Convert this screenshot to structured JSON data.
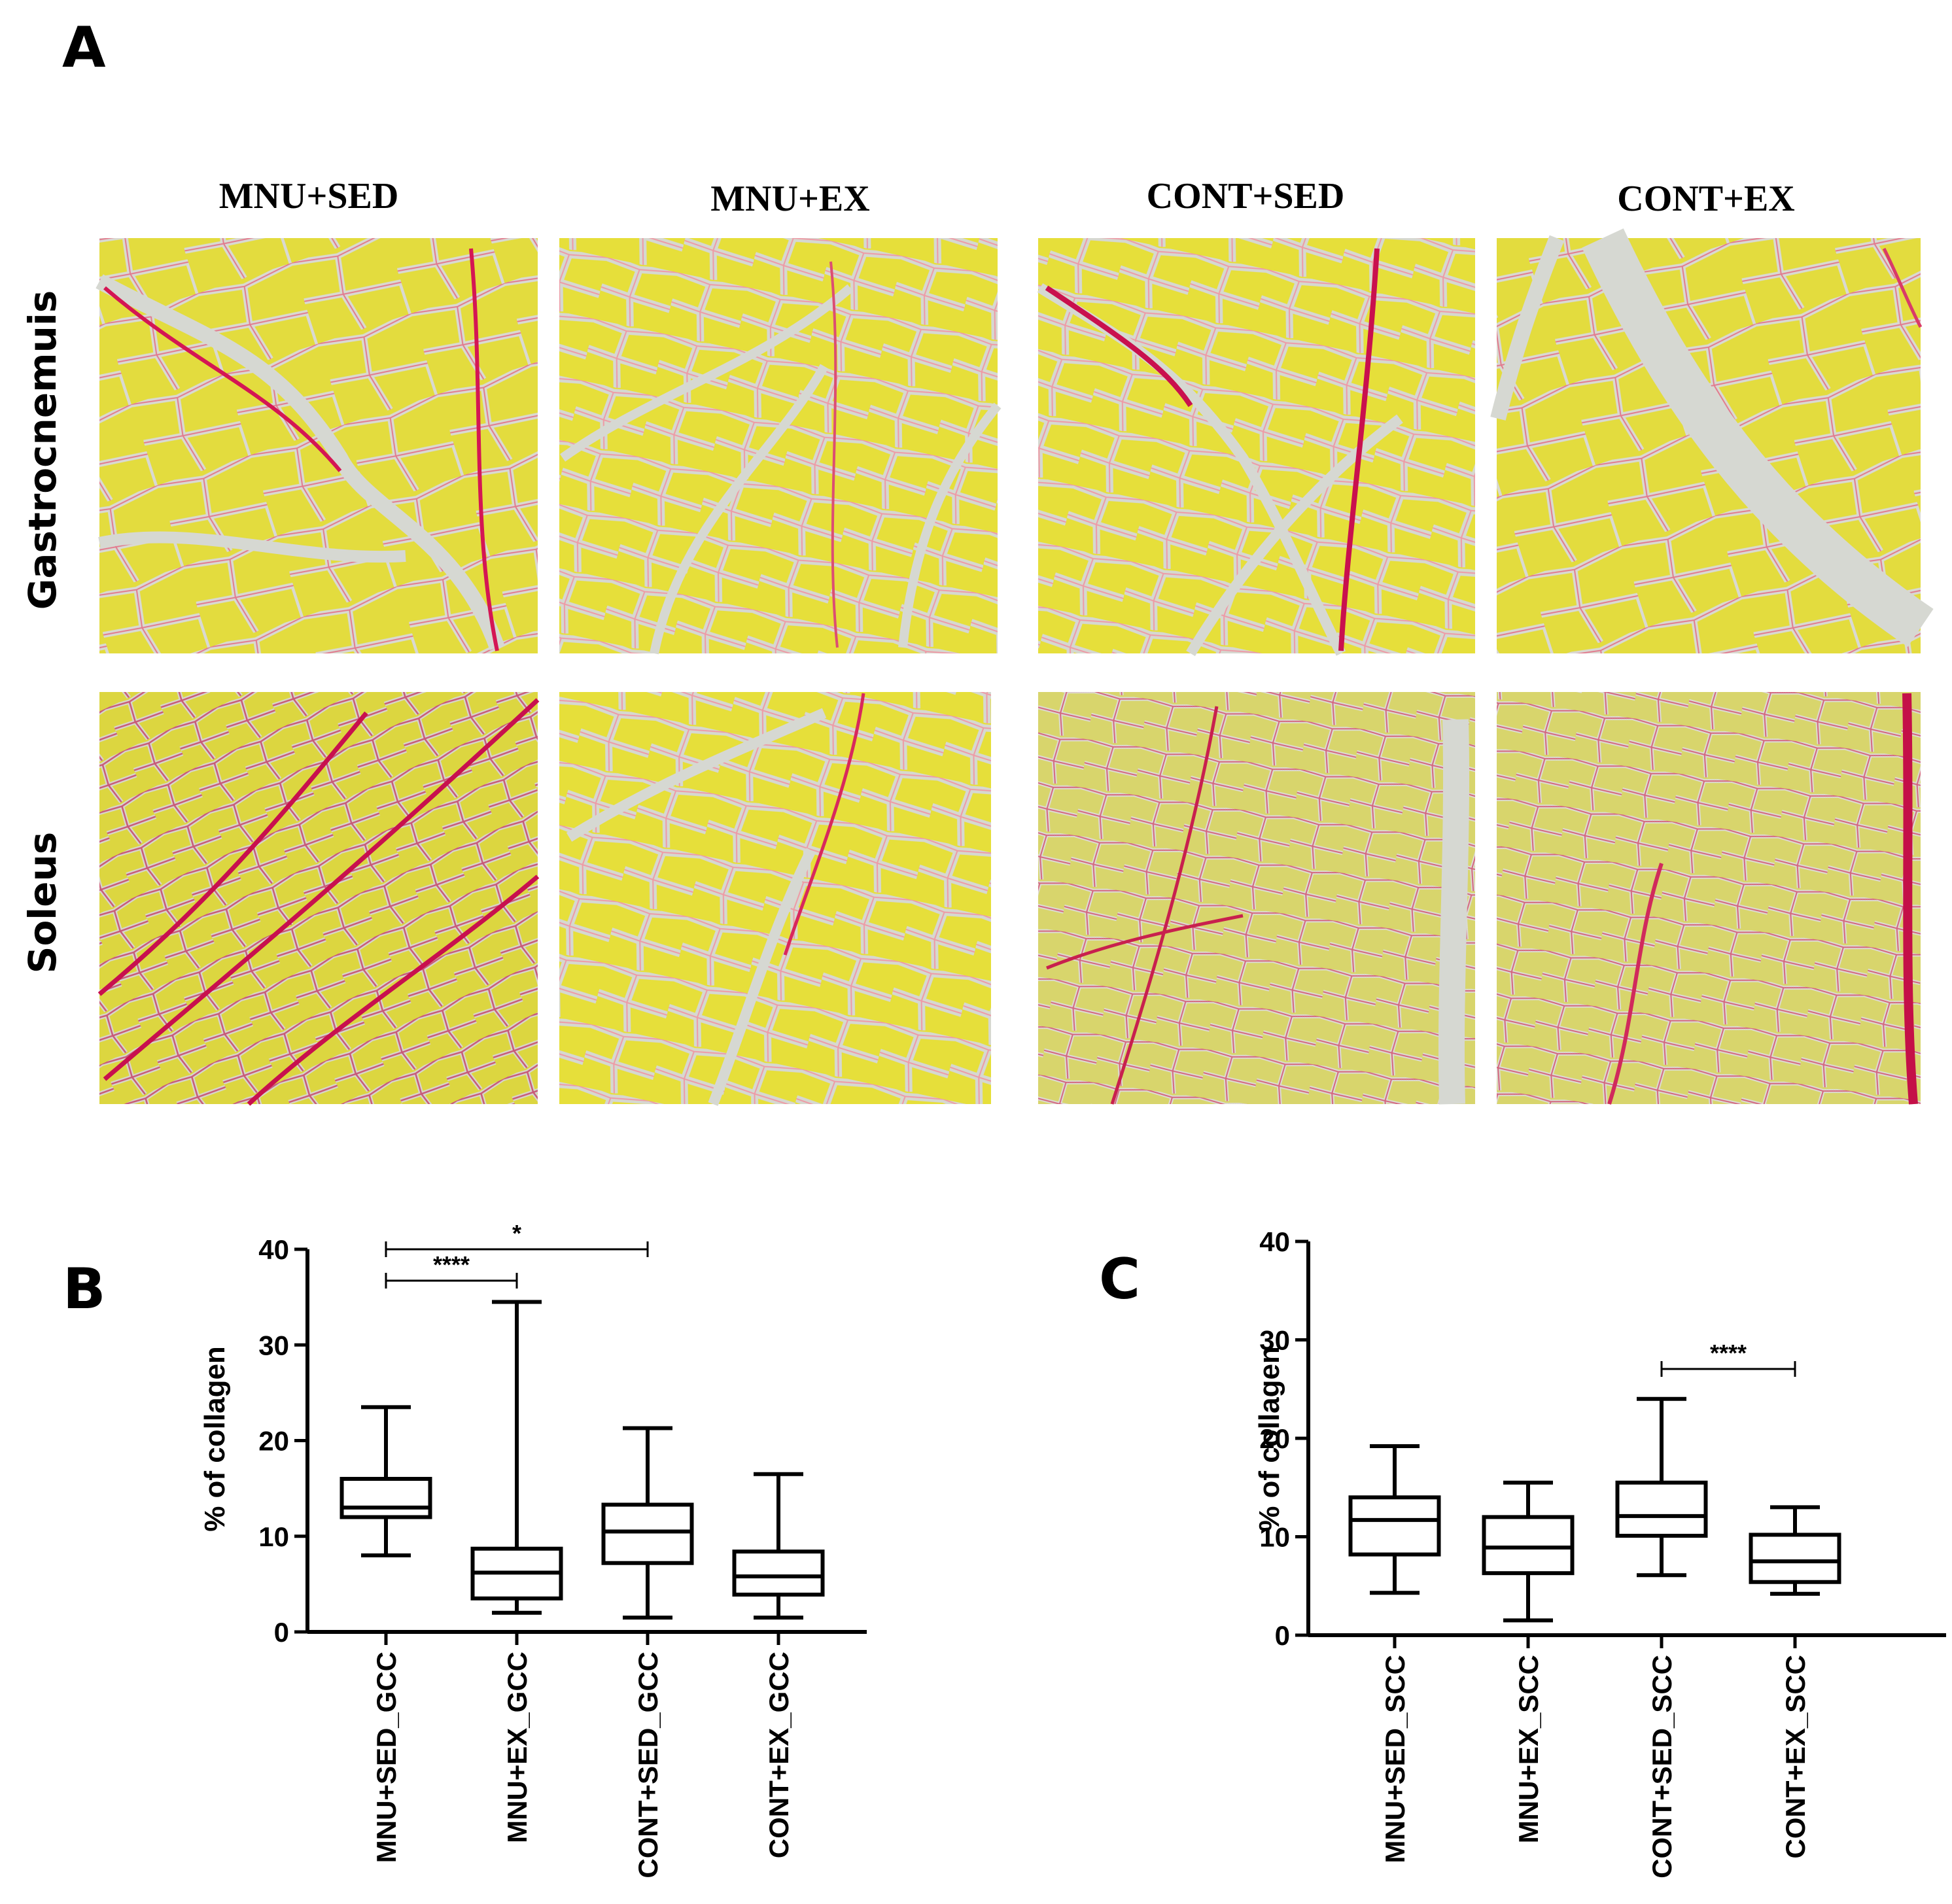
{
  "panels": {
    "a": {
      "letter": "A"
    },
    "b": {
      "letter": "B"
    },
    "c": {
      "letter": "C"
    }
  },
  "micrographs": {
    "columns": [
      "MNU+SED",
      "MNU+EX",
      "CONT+SED",
      "CONT+EX"
    ],
    "rows": [
      "Gastrocnemuis",
      "Soleus"
    ],
    "colors": {
      "fiber": "#e3dc3e",
      "fiber_alt": "#d9d46a",
      "stroma": "#d9d9d2",
      "collagen": "#d8195a"
    }
  },
  "chart_data": [
    {
      "type": "box",
      "panel": "B",
      "categories": [
        "MNU+SED_GCC",
        "MNU+EX_GCC",
        "CONT+SED_GCC",
        "CONT+EX_GCC"
      ],
      "boxes": [
        {
          "min": 8.0,
          "q1": 12.0,
          "median": 13.0,
          "q3": 16.0,
          "max": 23.5
        },
        {
          "min": 2.0,
          "q1": 3.5,
          "median": 6.2,
          "q3": 8.7,
          "max": 34.5
        },
        {
          "min": 1.5,
          "q1": 7.2,
          "median": 10.5,
          "q3": 13.3,
          "max": 21.3
        },
        {
          "min": 1.5,
          "q1": 3.9,
          "median": 5.8,
          "q3": 8.4,
          "max": 16.5
        }
      ],
      "ylabel": "% of collagen",
      "ylim": [
        0,
        40
      ],
      "yticks": [
        0,
        10,
        20,
        30,
        40
      ],
      "significance": [
        {
          "from": 0,
          "to": 2,
          "label": "*"
        },
        {
          "from": 0,
          "to": 1,
          "label": "****"
        }
      ]
    },
    {
      "type": "box",
      "panel": "C",
      "categories": [
        "MNU+SED_SCC",
        "MNU+EX_SCC",
        "CONT+SED_SCC",
        "CONT+EX_SCC"
      ],
      "boxes": [
        {
          "min": 4.3,
          "q1": 8.2,
          "median": 11.7,
          "q3": 14.0,
          "max": 19.2
        },
        {
          "min": 1.5,
          "q1": 6.3,
          "median": 8.9,
          "q3": 12.0,
          "max": 15.5
        },
        {
          "min": 6.1,
          "q1": 10.1,
          "median": 12.1,
          "q3": 15.5,
          "max": 24.0
        },
        {
          "min": 4.2,
          "q1": 5.4,
          "median": 7.5,
          "q3": 10.2,
          "max": 13.0
        }
      ],
      "ylabel": "% of collagen",
      "ylim": [
        0,
        40
      ],
      "yticks": [
        0,
        10,
        20,
        30,
        40
      ],
      "significance": [
        {
          "from": 2,
          "to": 3,
          "label": "****"
        }
      ]
    }
  ]
}
